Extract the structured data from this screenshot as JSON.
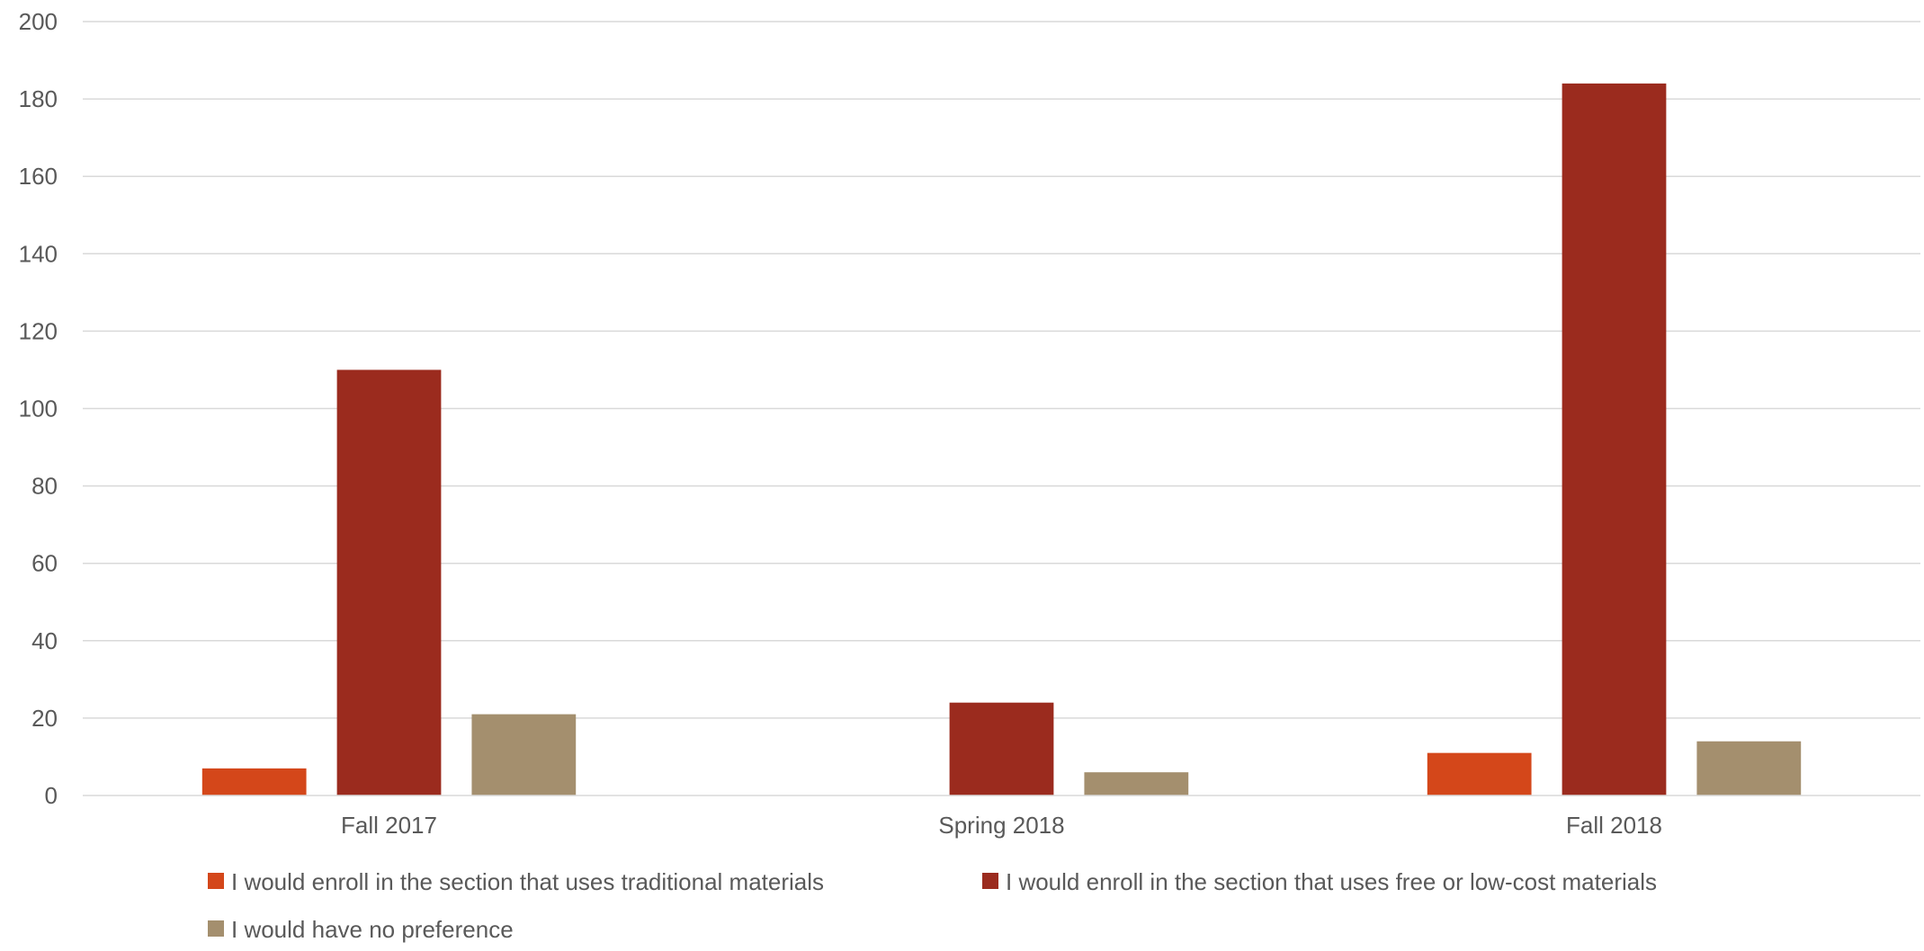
{
  "chart_data": {
    "type": "bar",
    "title": "",
    "xlabel": "",
    "ylabel": "",
    "categories": [
      "Fall 2017",
      "Spring 2018",
      "Fall 2018"
    ],
    "ylim": [
      0,
      200
    ],
    "yticks": [
      0,
      20,
      40,
      60,
      80,
      100,
      120,
      140,
      160,
      180,
      200
    ],
    "grid": true,
    "legend_position": "bottom",
    "series": [
      {
        "name": "I would enroll in the section that uses traditional materials",
        "color": "#d4471a",
        "values": [
          7,
          0,
          11
        ]
      },
      {
        "name": "I would enroll in the section that uses free or low-cost materials",
        "color": "#9b2b1e",
        "values": [
          110,
          24,
          184
        ]
      },
      {
        "name": "I would have no preference",
        "color": "#a48f6e",
        "values": [
          21,
          6,
          14
        ]
      }
    ]
  }
}
